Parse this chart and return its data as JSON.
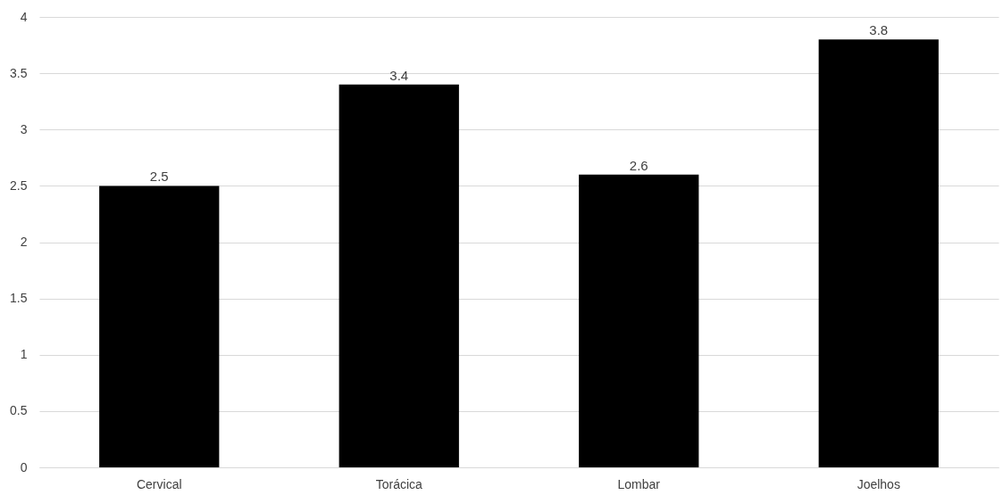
{
  "chart_data": {
    "type": "bar",
    "categories": [
      "Cervical",
      "Torácica",
      "Lombar",
      "Joelhos"
    ],
    "values": [
      2.5,
      3.4,
      2.6,
      3.8
    ],
    "color": "#000000",
    "ylim": [
      0,
      4
    ],
    "yticks": [
      0,
      0.5,
      1,
      1.5,
      2,
      2.5,
      3,
      3.5,
      4
    ],
    "grid": "y",
    "data_labels": true
  }
}
